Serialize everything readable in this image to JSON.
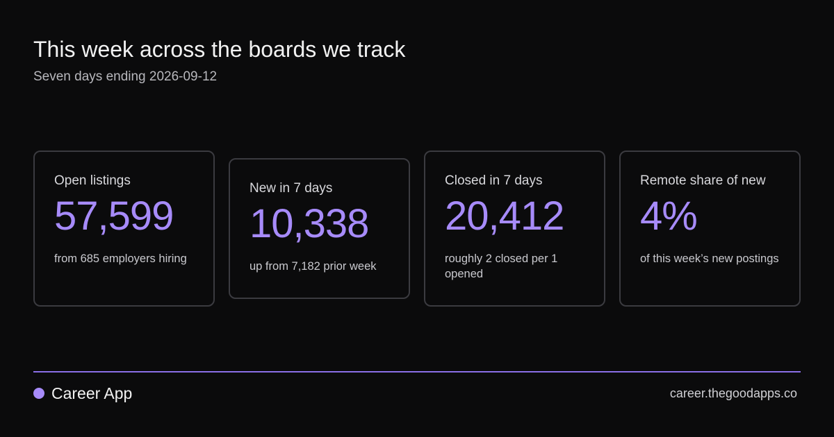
{
  "header": {
    "title": "This week across the boards we track",
    "subtitle": "Seven days ending 2026-09-12"
  },
  "cards": [
    {
      "label": "Open listings",
      "value": "57,599",
      "note": "from 685 employers hiring"
    },
    {
      "label": "New in 7 days",
      "value": "10,338",
      "note": "up from 7,182  prior week"
    },
    {
      "label": "Closed in 7 days",
      "value": "20,412",
      "note": "roughly  2 closed per 1 opened"
    },
    {
      "label": "Remote share of new",
      "value": "4%",
      "note": "of this week’s new postings"
    }
  ],
  "footer": {
    "brand": "Career App",
    "site": "career.thegoodapps.co"
  },
  "colors": {
    "background": "#0b0b0c",
    "accent": "#a78bfa",
    "card_border": "#3b3b40"
  }
}
